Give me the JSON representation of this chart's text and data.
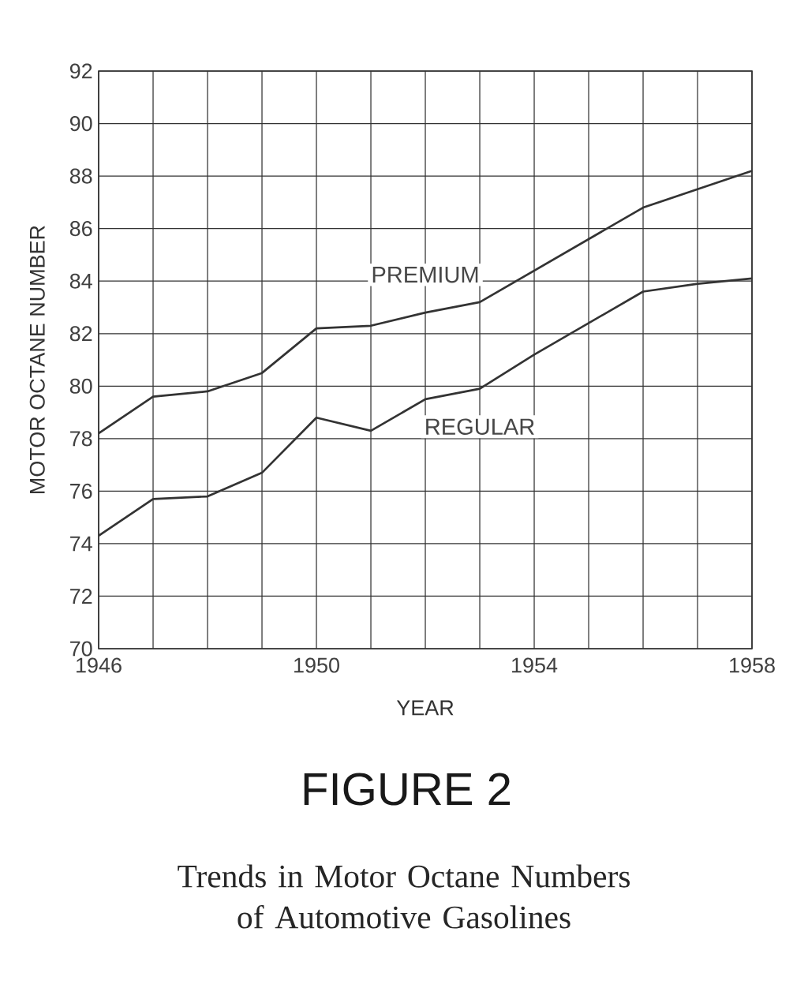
{
  "chart_data": {
    "type": "line",
    "title": "FIGURE 2",
    "subtitle": "Trends in Motor Octane Numbers of Automotive Gasolines",
    "xlabel": "YEAR",
    "ylabel": "MOTOR OCTANE NUMBER",
    "x": [
      1946,
      1947,
      1948,
      1949,
      1950,
      1951,
      1952,
      1953,
      1954,
      1955,
      1956,
      1957,
      1958
    ],
    "series": [
      {
        "name": "PREMIUM",
        "color": "#333333",
        "values": [
          78.2,
          79.6,
          79.8,
          80.5,
          82.2,
          82.3,
          82.8,
          83.2,
          84.4,
          85.6,
          86.8,
          87.5,
          88.2
        ]
      },
      {
        "name": "REGULAR",
        "color": "#333333",
        "values": [
          74.3,
          75.7,
          75.8,
          76.7,
          78.8,
          78.3,
          79.5,
          79.9,
          81.2,
          82.4,
          83.6,
          83.9,
          84.1
        ]
      }
    ],
    "xlim": [
      1946,
      1958
    ],
    "ylim": [
      70,
      92
    ],
    "xticks": [
      1946,
      {
        "value": 1947,
        "label": null
      },
      {
        "value": 1948,
        "label": null
      },
      {
        "value": 1949,
        "label": null
      },
      1950,
      {
        "value": 1951,
        "label": null
      },
      {
        "value": 1952,
        "label": null
      },
      {
        "value": 1953,
        "label": null
      },
      1954,
      {
        "value": 1955,
        "label": null
      },
      {
        "value": 1956,
        "label": null
      },
      {
        "value": 1957,
        "label": null
      },
      1958
    ],
    "yticks": [
      70,
      72,
      74,
      76,
      78,
      80,
      82,
      84,
      86,
      88,
      90,
      92
    ],
    "grid": true,
    "marker": "none",
    "line_style": "solid"
  }
}
